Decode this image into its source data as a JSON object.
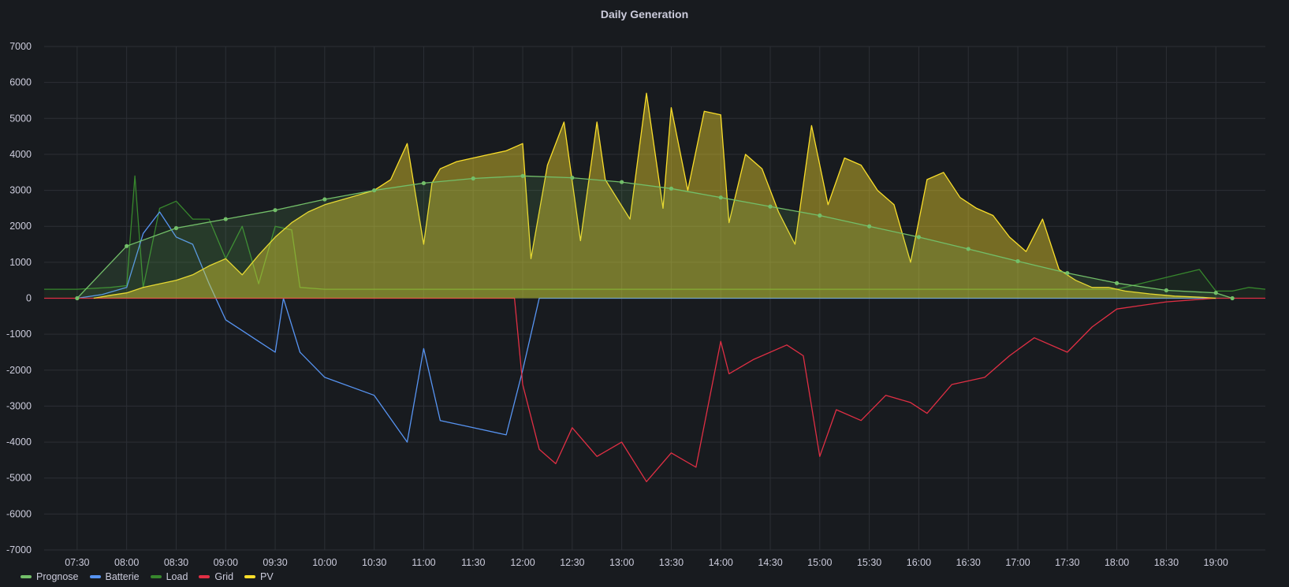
{
  "panel": {
    "title": "Daily Generation"
  },
  "chart_data": {
    "type": "area",
    "title": "Daily Generation",
    "xlabel": "",
    "ylabel": "",
    "ylim": [
      -7000,
      7000
    ],
    "xlim": [
      "07:10",
      "19:30"
    ],
    "y_ticks": [
      7000,
      6000,
      5000,
      4000,
      3000,
      2000,
      1000,
      0,
      -1000,
      -2000,
      -3000,
      -4000,
      -5000,
      -6000,
      -7000
    ],
    "x_ticks": [
      "07:30",
      "08:00",
      "08:30",
      "09:00",
      "09:30",
      "10:00",
      "10:30",
      "11:00",
      "11:30",
      "12:00",
      "12:30",
      "13:00",
      "13:30",
      "14:00",
      "14:30",
      "15:00",
      "15:30",
      "16:00",
      "16:30",
      "17:00",
      "17:30",
      "18:00",
      "18:30",
      "19:00"
    ],
    "grid": true,
    "legend_position": "bottom-left",
    "series": [
      {
        "name": "Prognose",
        "color": "#73bf69",
        "x": [
          "07:30",
          "08:00",
          "08:30",
          "09:00",
          "09:30",
          "10:00",
          "10:30",
          "11:00",
          "11:30",
          "12:00",
          "12:30",
          "13:00",
          "13:30",
          "14:00",
          "14:30",
          "15:00",
          "15:30",
          "16:00",
          "16:30",
          "17:00",
          "17:30",
          "18:00",
          "18:30",
          "19:00",
          "19:10"
        ],
        "y": [
          0,
          1450,
          1950,
          2200,
          2450,
          2750,
          3000,
          3200,
          3330,
          3400,
          3350,
          3230,
          3050,
          2800,
          2550,
          2300,
          2000,
          1700,
          1370,
          1030,
          700,
          420,
          220,
          150,
          0
        ]
      },
      {
        "name": "Batterie",
        "color": "#5794f2",
        "x": [
          "07:30",
          "07:45",
          "08:00",
          "08:10",
          "08:20",
          "08:30",
          "08:40",
          "08:50",
          "09:00",
          "09:10",
          "09:20",
          "09:30",
          "09:35",
          "09:45",
          "10:00",
          "10:30",
          "10:50",
          "11:00",
          "11:10",
          "11:30",
          "11:50",
          "12:00",
          "12:10",
          "13:00",
          "14:00",
          "15:00",
          "16:00",
          "17:00",
          "18:00",
          "19:00"
        ],
        "y": [
          0,
          100,
          300,
          1800,
          2400,
          1700,
          1500,
          400,
          -600,
          -900,
          -1200,
          -1500,
          0,
          -1500,
          -2200,
          -2700,
          -4000,
          -1400,
          -3400,
          -3600,
          -3800,
          -2000,
          0,
          0,
          0,
          0,
          0,
          0,
          0,
          0
        ]
      },
      {
        "name": "Load",
        "color": "#37872d",
        "x": [
          "07:10",
          "07:30",
          "07:50",
          "08:00",
          "08:05",
          "08:10",
          "08:20",
          "08:30",
          "08:40",
          "08:50",
          "09:00",
          "09:10",
          "09:20",
          "09:30",
          "09:40",
          "09:45",
          "10:00",
          "11:00",
          "12:00",
          "13:00",
          "14:00",
          "15:00",
          "16:00",
          "17:00",
          "18:00",
          "18:50",
          "19:00",
          "19:10",
          "19:20",
          "19:30"
        ],
        "y": [
          250,
          250,
          300,
          350,
          3400,
          300,
          2500,
          2700,
          2200,
          2200,
          1100,
          2000,
          400,
          2000,
          1900,
          300,
          250,
          250,
          250,
          250,
          250,
          250,
          250,
          250,
          250,
          800,
          200,
          200,
          300,
          250
        ]
      },
      {
        "name": "Grid",
        "color": "#e02f44",
        "x": [
          "07:10",
          "07:30",
          "08:00",
          "09:00",
          "10:00",
          "11:00",
          "11:55",
          "12:00",
          "12:10",
          "12:20",
          "12:30",
          "12:45",
          "13:00",
          "13:15",
          "13:30",
          "13:45",
          "14:00",
          "14:05",
          "14:20",
          "14:40",
          "14:50",
          "15:00",
          "15:10",
          "15:25",
          "15:40",
          "15:55",
          "16:05",
          "16:20",
          "16:40",
          "16:55",
          "17:10",
          "17:30",
          "17:45",
          "18:00",
          "18:15",
          "18:30",
          "19:00",
          "19:30"
        ],
        "y": [
          0,
          0,
          0,
          0,
          0,
          0,
          0,
          -2400,
          -4200,
          -4600,
          -3600,
          -4400,
          -4000,
          -5100,
          -4300,
          -4700,
          -1200,
          -2100,
          -1700,
          -1300,
          -1600,
          -4400,
          -3100,
          -3400,
          -2700,
          -2900,
          -3200,
          -2400,
          -2200,
          -1600,
          -1100,
          -1500,
          -800,
          -300,
          -200,
          -100,
          0,
          0
        ]
      },
      {
        "name": "PV",
        "color": "#fade2a",
        "x": [
          "07:40",
          "07:50",
          "08:00",
          "08:10",
          "08:20",
          "08:30",
          "08:40",
          "08:50",
          "09:00",
          "09:10",
          "09:20",
          "09:30",
          "09:40",
          "09:50",
          "10:00",
          "10:15",
          "10:30",
          "10:40",
          "10:50",
          "11:00",
          "11:05",
          "11:10",
          "11:20",
          "11:30",
          "11:40",
          "11:50",
          "12:00",
          "12:05",
          "12:15",
          "12:25",
          "12:35",
          "12:45",
          "12:50",
          "13:05",
          "13:15",
          "13:25",
          "13:30",
          "13:40",
          "13:50",
          "14:00",
          "14:05",
          "14:15",
          "14:25",
          "14:35",
          "14:45",
          "14:55",
          "15:05",
          "15:15",
          "15:25",
          "15:35",
          "15:45",
          "15:55",
          "16:05",
          "16:15",
          "16:25",
          "16:35",
          "16:45",
          "16:55",
          "17:05",
          "17:15",
          "17:25",
          "17:35",
          "17:45",
          "17:55",
          "18:05",
          "18:20",
          "18:35",
          "18:50",
          "19:00"
        ],
        "y": [
          0,
          80,
          150,
          300,
          400,
          500,
          650,
          900,
          1100,
          650,
          1200,
          1700,
          2100,
          2400,
          2600,
          2800,
          3000,
          3300,
          4300,
          1500,
          3200,
          3600,
          3800,
          3900,
          4000,
          4100,
          4300,
          1100,
          3700,
          4900,
          1600,
          4900,
          3300,
          2200,
          5700,
          2500,
          5300,
          3000,
          5200,
          5100,
          2100,
          4000,
          3600,
          2400,
          1500,
          4800,
          2600,
          3900,
          3700,
          3000,
          2600,
          1000,
          3300,
          3500,
          2800,
          2500,
          2300,
          1700,
          1300,
          2200,
          800,
          500,
          300,
          300,
          200,
          120,
          60,
          30,
          0
        ]
      }
    ]
  }
}
